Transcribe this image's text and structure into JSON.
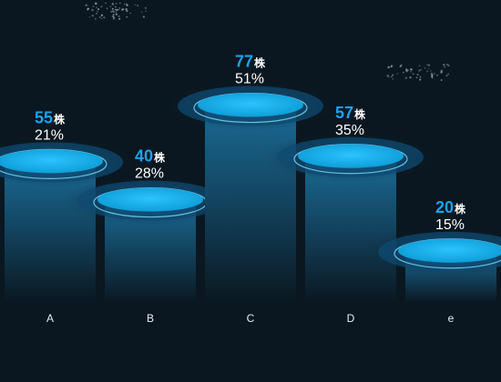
{
  "chart_data": {
    "type": "bar",
    "categories": [
      "A",
      "B",
      "C",
      "D",
      "e"
    ],
    "values": [
      55,
      40,
      77,
      57,
      20
    ],
    "percentages": [
      "21%",
      "28%",
      "51%",
      "35%",
      "15%"
    ],
    "unit": "株",
    "ylim": [
      0,
      90
    ],
    "grid": false,
    "legend": "none",
    "colors": {
      "background": "#0a1720",
      "bar_top": "#1b6f9c",
      "bar_bottom": "#0a1720",
      "disc": "#12b4ef",
      "disc_glow": "#0d4f78",
      "value_text": "#1aa3ee",
      "label_text": "#ffffff"
    }
  }
}
